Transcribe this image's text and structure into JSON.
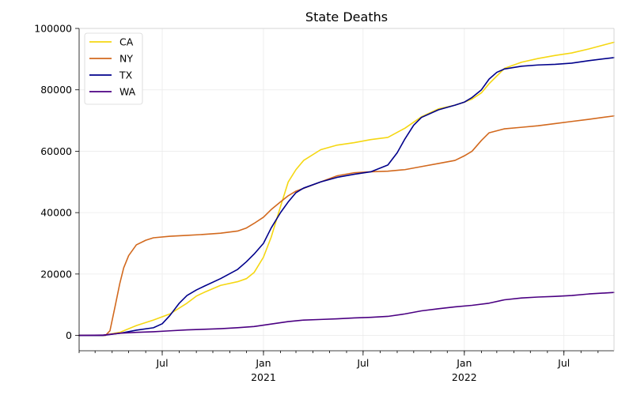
{
  "chart_data": {
    "type": "line",
    "title": "State Deaths",
    "xlabel": "",
    "ylabel": "",
    "x_range": [
      "2020-02-01",
      "2022-09-30"
    ],
    "ylim": [
      -5000,
      100000
    ],
    "y_ticks": [
      0,
      20000,
      40000,
      60000,
      80000,
      100000
    ],
    "x_ticks": [
      {
        "date": "2020-07-01",
        "label": "Jul",
        "sub": ""
      },
      {
        "date": "2021-01-01",
        "label": "Jan",
        "sub": "2021"
      },
      {
        "date": "2021-07-01",
        "label": "Jul",
        "sub": ""
      },
      {
        "date": "2022-01-01",
        "label": "Jan",
        "sub": "2022"
      },
      {
        "date": "2022-07-01",
        "label": "Jul",
        "sub": ""
      }
    ],
    "grid": true,
    "legend": "top-left",
    "series": [
      {
        "name": "CA",
        "color": "#f5d712",
        "x": [
          "2020-02-01",
          "2020-03-15",
          "2020-04-15",
          "2020-05-15",
          "2020-06-15",
          "2020-07-15",
          "2020-08-15",
          "2020-09-01",
          "2020-09-15",
          "2020-10-15",
          "2020-11-15",
          "2020-12-01",
          "2020-12-15",
          "2021-01-01",
          "2021-01-15",
          "2021-02-01",
          "2021-02-15",
          "2021-03-01",
          "2021-03-15",
          "2021-04-15",
          "2021-05-15",
          "2021-06-15",
          "2021-07-15",
          "2021-08-15",
          "2021-09-15",
          "2021-10-15",
          "2021-11-15",
          "2021-12-15",
          "2022-01-01",
          "2022-01-15",
          "2022-02-01",
          "2022-02-15",
          "2022-03-15",
          "2022-04-15",
          "2022-05-15",
          "2022-06-15",
          "2022-07-15",
          "2022-08-15",
          "2022-09-30"
        ],
        "values": [
          0,
          0,
          1000,
          3200,
          5000,
          7000,
          10500,
          12800,
          14000,
          16300,
          17500,
          18500,
          20500,
          25500,
          32000,
          42000,
          50000,
          54000,
          57000,
          60500,
          62000,
          62800,
          63800,
          64500,
          67500,
          71200,
          73800,
          75000,
          76000,
          77000,
          79000,
          82000,
          87000,
          89000,
          90200,
          91200,
          92000,
          93300,
          95500
        ]
      },
      {
        "name": "NY",
        "color": "#d2691e",
        "x": [
          "2020-02-01",
          "2020-03-20",
          "2020-03-28",
          "2020-04-07",
          "2020-04-15",
          "2020-04-22",
          "2020-05-01",
          "2020-05-15",
          "2020-06-01",
          "2020-06-15",
          "2020-07-15",
          "2020-08-15",
          "2020-09-15",
          "2020-10-15",
          "2020-11-15",
          "2020-12-01",
          "2020-12-15",
          "2021-01-01",
          "2021-01-15",
          "2021-02-01",
          "2021-02-15",
          "2021-03-01",
          "2021-04-15",
          "2021-05-15",
          "2021-06-15",
          "2021-07-15",
          "2021-08-15",
          "2021-09-15",
          "2021-10-15",
          "2021-11-15",
          "2021-12-15",
          "2022-01-01",
          "2022-01-15",
          "2022-02-01",
          "2022-02-15",
          "2022-03-15",
          "2022-04-15",
          "2022-05-15",
          "2022-06-15",
          "2022-07-15",
          "2022-08-15",
          "2022-09-30"
        ],
        "values": [
          0,
          0,
          1500,
          10000,
          17000,
          22000,
          26000,
          29500,
          31000,
          31800,
          32300,
          32600,
          32900,
          33300,
          34000,
          35000,
          36500,
          38500,
          41000,
          43500,
          45500,
          47000,
          50000,
          52000,
          53000,
          53300,
          53500,
          54000,
          55000,
          56000,
          57000,
          58500,
          60000,
          63500,
          66000,
          67300,
          67800,
          68300,
          69000,
          69700,
          70400,
          71500
        ]
      },
      {
        "name": "TX",
        "color": "#00008b",
        "x": [
          "2020-02-01",
          "2020-03-15",
          "2020-04-15",
          "2020-05-15",
          "2020-06-15",
          "2020-07-01",
          "2020-07-15",
          "2020-08-01",
          "2020-08-15",
          "2020-09-01",
          "2020-09-15",
          "2020-10-15",
          "2020-11-15",
          "2020-12-01",
          "2020-12-15",
          "2021-01-01",
          "2021-01-15",
          "2021-02-01",
          "2021-02-15",
          "2021-03-01",
          "2021-03-15",
          "2021-04-15",
          "2021-05-15",
          "2021-06-15",
          "2021-07-15",
          "2021-08-15",
          "2021-09-01",
          "2021-09-15",
          "2021-10-01",
          "2021-10-15",
          "2021-11-15",
          "2021-12-15",
          "2022-01-01",
          "2022-01-15",
          "2022-02-01",
          "2022-02-15",
          "2022-03-01",
          "2022-03-15",
          "2022-04-15",
          "2022-05-15",
          "2022-06-15",
          "2022-07-15",
          "2022-08-15",
          "2022-09-30"
        ],
        "values": [
          0,
          0,
          700,
          1700,
          2500,
          3800,
          6500,
          10500,
          13000,
          14800,
          16000,
          18500,
          21500,
          24000,
          26500,
          30000,
          35000,
          40000,
          43500,
          46500,
          48000,
          50000,
          51500,
          52500,
          53300,
          55500,
          59500,
          64000,
          68500,
          71000,
          73500,
          75000,
          76000,
          77500,
          80000,
          83500,
          85700,
          86800,
          87700,
          88100,
          88300,
          88700,
          89500,
          90500
        ]
      },
      {
        "name": "WA",
        "color": "#4b0082",
        "x": [
          "2020-02-01",
          "2020-03-15",
          "2020-04-15",
          "2020-05-15",
          "2020-06-15",
          "2020-07-15",
          "2020-08-15",
          "2020-09-15",
          "2020-10-15",
          "2020-11-15",
          "2020-12-15",
          "2021-01-15",
          "2021-02-15",
          "2021-03-15",
          "2021-04-15",
          "2021-05-15",
          "2021-06-15",
          "2021-07-15",
          "2021-08-15",
          "2021-09-15",
          "2021-10-15",
          "2021-11-15",
          "2021-12-15",
          "2022-01-15",
          "2022-02-15",
          "2022-03-15",
          "2022-04-15",
          "2022-05-15",
          "2022-06-15",
          "2022-07-15",
          "2022-08-15",
          "2022-09-30"
        ],
        "values": [
          0,
          100,
          700,
          1000,
          1200,
          1500,
          1800,
          2000,
          2200,
          2500,
          2900,
          3700,
          4500,
          5000,
          5200,
          5400,
          5700,
          5900,
          6200,
          7000,
          8000,
          8700,
          9300,
          9800,
          10500,
          11600,
          12200,
          12500,
          12700,
          13000,
          13500,
          14000
        ]
      }
    ]
  }
}
